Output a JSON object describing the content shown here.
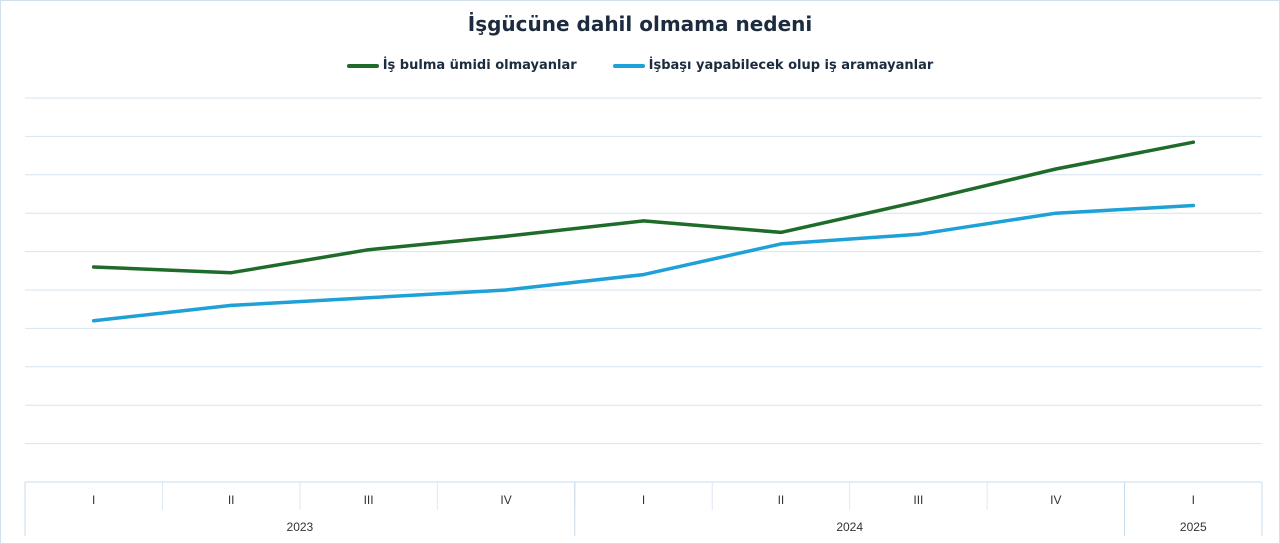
{
  "chart_data": {
    "type": "line",
    "title": "İşgücüne dahil olmama nedeni",
    "xlabel": "",
    "ylabel": "",
    "grid": true,
    "legend_position": "top-center",
    "categories": [
      "I",
      "II",
      "III",
      "IV",
      "I",
      "II",
      "III",
      "IV",
      "I"
    ],
    "year_groups": [
      {
        "label": "2023",
        "span": 4
      },
      {
        "label": "2024",
        "span": 4
      },
      {
        "label": "2025",
        "span": 1
      }
    ],
    "ylim": [
      0,
      10
    ],
    "series": [
      {
        "name": "İş bulma ümidi olmayanlar",
        "color": "#1e6b2a",
        "values": [
          5.6,
          5.45,
          6.05,
          6.4,
          6.8,
          6.5,
          7.3,
          8.15,
          8.85
        ]
      },
      {
        "name": "İşbaşı yapabilecek olup iş aramayanlar",
        "color": "#1ea1d6",
        "values": [
          4.2,
          4.6,
          4.8,
          5.0,
          5.4,
          6.2,
          6.45,
          7.0,
          7.2
        ]
      }
    ]
  }
}
